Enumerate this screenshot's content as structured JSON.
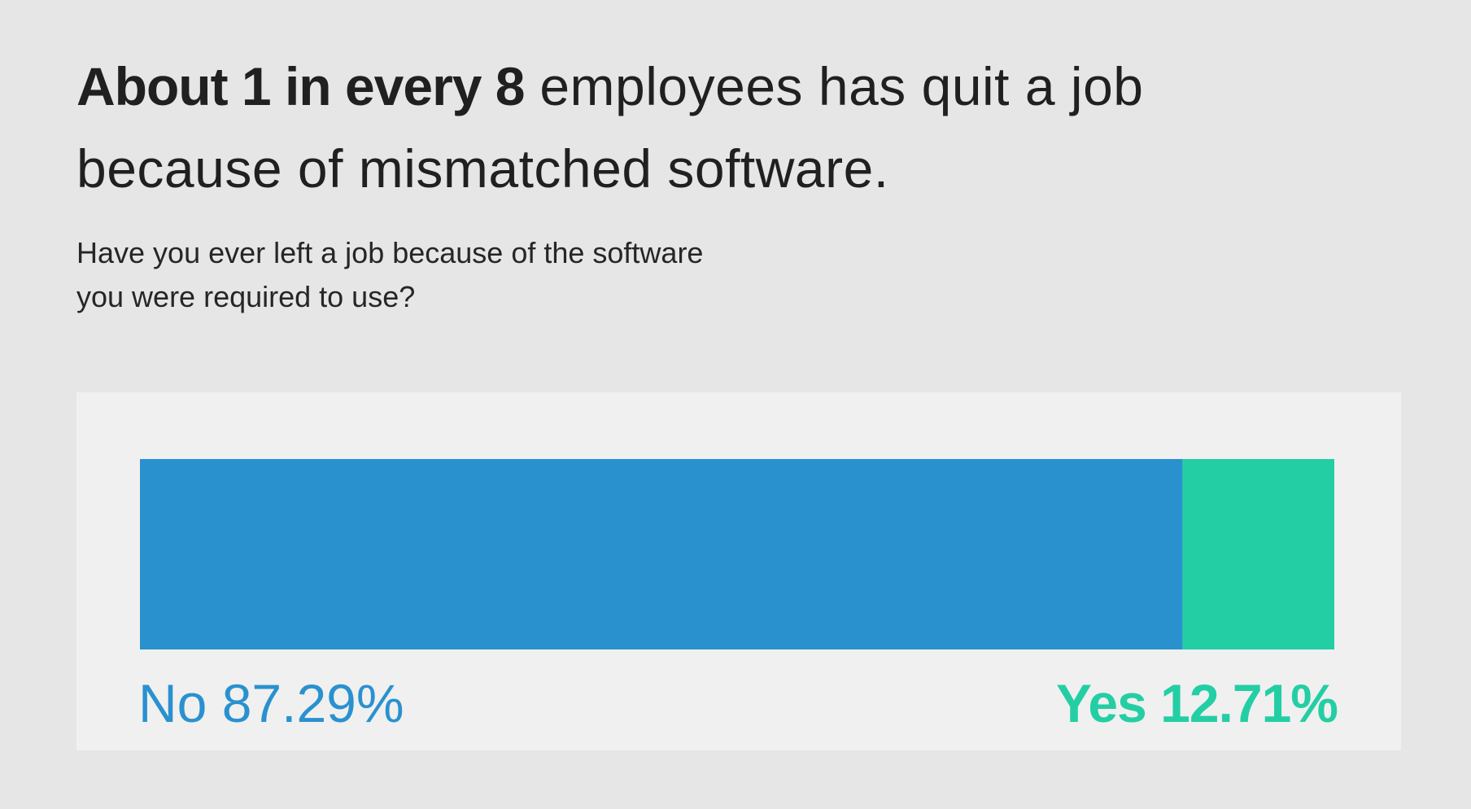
{
  "headline": {
    "bold_part": "About 1 in every 8",
    "regular_part": " employees has quit a job because of mismatched software."
  },
  "question": {
    "line1": "Have you ever left a job because of the software",
    "line2": "you were required to use?"
  },
  "colors": {
    "no": "#2a91cf",
    "yes": "#24cea4",
    "panel": "#f0f0f0",
    "background": "#e6e6e6"
  },
  "chart_data": {
    "type": "bar",
    "orientation": "horizontal-stacked-100",
    "categories": [
      "No",
      "Yes"
    ],
    "values": [
      87.29,
      12.71
    ],
    "value_labels": [
      "No 87.29%",
      "Yes 12.71%"
    ],
    "unit": "%",
    "xlim": [
      0,
      100
    ],
    "grid": false,
    "legend": "none"
  }
}
